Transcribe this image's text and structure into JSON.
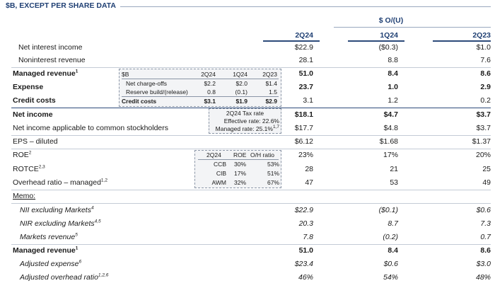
{
  "header": {
    "title": "$B, EXCEPT PER SHARE DATA",
    "change_label": "$ O/(U)"
  },
  "columns": [
    "2Q24",
    "1Q24",
    "2Q23"
  ],
  "rows": [
    {
      "label": "Net interest income",
      "v": [
        "$22.9",
        "($0.3)",
        "$1.0"
      ]
    },
    {
      "label": "Noninterest revenue",
      "v": [
        "28.1",
        "8.8",
        "7.6"
      ]
    },
    {
      "label": "Managed revenue",
      "sup": "1",
      "v": [
        "51.0",
        "8.4",
        "8.6"
      ]
    },
    {
      "label": "Expense",
      "v": [
        "23.7",
        "1.0",
        "2.9"
      ]
    },
    {
      "label": "Credit costs",
      "v": [
        "3.1",
        "1.2",
        "0.2"
      ]
    },
    {
      "label": "Net income",
      "v": [
        "$18.1",
        "$4.7",
        "$3.7"
      ]
    },
    {
      "label": "Net income applicable to common stockholders",
      "v": [
        "$17.7",
        "$4.8",
        "$3.7"
      ]
    },
    {
      "label": "EPS – diluted",
      "v": [
        "$6.12",
        "$1.68",
        "$1.37"
      ]
    },
    {
      "label": "ROE",
      "sup": "2",
      "v": [
        "23%",
        "17%",
        "20%"
      ]
    },
    {
      "label": "ROTCE",
      "sup": "2,3",
      "v": [
        "28",
        "21",
        "25"
      ]
    },
    {
      "label": "Overhead ratio – managed",
      "sup": "1,2",
      "v": [
        "47",
        "53",
        "49"
      ]
    }
  ],
  "memo": {
    "title": "Memo:",
    "rows": [
      {
        "label": "NII excluding Markets",
        "sup": "4",
        "v": [
          "$22.9",
          "($0.1)",
          "$0.6"
        ]
      },
      {
        "label": "NIR excluding Markets",
        "sup": "4,5",
        "v": [
          "20.3",
          "8.7",
          "7.3"
        ]
      },
      {
        "label": "Markets revenue",
        "sup": "5",
        "v": [
          "7.8",
          "(0.2)",
          "0.7"
        ]
      },
      {
        "label": "Managed revenue",
        "sup": "1",
        "v": [
          "51.0",
          "8.4",
          "8.6"
        ]
      },
      {
        "label": "Adjusted expense",
        "sup": "6",
        "v": [
          "$23.4",
          "$0.6",
          "$3.0"
        ]
      },
      {
        "label": "Adjusted overhead ratio",
        "sup": "1,2,6",
        "v": [
          "46%",
          "54%",
          "48%"
        ]
      }
    ]
  },
  "credit_box": {
    "header": [
      "$B",
      "2Q24",
      "1Q24",
      "2Q23"
    ],
    "rows": [
      {
        "label": "Net charge-offs",
        "v": [
          "$2.2",
          "$2.0",
          "$1.4"
        ]
      },
      {
        "label": "Reserve build/(release)",
        "v": [
          "0.8",
          "(0.1)",
          "1.5"
        ]
      },
      {
        "label": "Credit costs",
        "v": [
          "$3.1",
          "$1.9",
          "$2.9"
        ]
      }
    ]
  },
  "tax_box": {
    "title": "2Q24 Tax rate",
    "effective": "Effective rate: 22.6%",
    "managed": "Managed rate: 25.1%",
    "managed_sup": "1,7"
  },
  "roe_box": {
    "header": [
      "2Q24",
      "ROE",
      "O/H ratio"
    ],
    "rows": [
      {
        "label": "CCB",
        "roe": "30%",
        "oh": "53%"
      },
      {
        "label": "CIB",
        "roe": "17%",
        "oh": "51%"
      },
      {
        "label": "AWM",
        "roe": "32%",
        "oh": "67%"
      }
    ]
  }
}
